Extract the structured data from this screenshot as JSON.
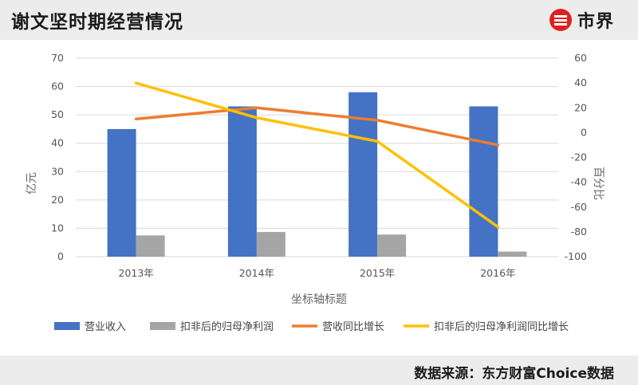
{
  "header": {
    "title": "谢文坚时期经营情况",
    "brand_name": "市界"
  },
  "footer": {
    "source": "数据来源：东方财富Choice数据"
  },
  "colors": {
    "revenue_bar": "#4472c4",
    "profit_bar": "#a5a5a5",
    "revenue_growth_line": "#ed7d31",
    "profit_growth_line": "#ffc000",
    "header_bg": "#ececec",
    "brand_red": "#e02020"
  },
  "chart_data": {
    "type": "bar",
    "categories": [
      "2013年",
      "2014年",
      "2015年",
      "2016年"
    ],
    "xlabel": "坐标轴标题",
    "ylabel": "亿元",
    "y2label": "百分比",
    "ylim": [
      0,
      70
    ],
    "y2lim": [
      -100,
      60
    ],
    "yticks": [
      0,
      10,
      20,
      30,
      40,
      50,
      60,
      70
    ],
    "y2ticks": [
      -100,
      -80,
      -60,
      -40,
      -20,
      0,
      20,
      40,
      60
    ],
    "grid": true,
    "legend_position": "bottom",
    "series": [
      {
        "name": "营业收入",
        "kind": "bar",
        "axis": "left",
        "values": [
          45,
          53,
          58,
          53
        ]
      },
      {
        "name": "扣非后的归母净利润",
        "kind": "bar",
        "axis": "left",
        "values": [
          7.5,
          8.7,
          7.8,
          1.8
        ]
      },
      {
        "name": "营收同比增长",
        "kind": "line",
        "axis": "right",
        "values": [
          11,
          20,
          10,
          -10
        ]
      },
      {
        "name": "扣非后的归母净利润同比增长",
        "kind": "line",
        "axis": "right",
        "values": [
          40,
          12,
          -7,
          -76
        ]
      }
    ]
  }
}
